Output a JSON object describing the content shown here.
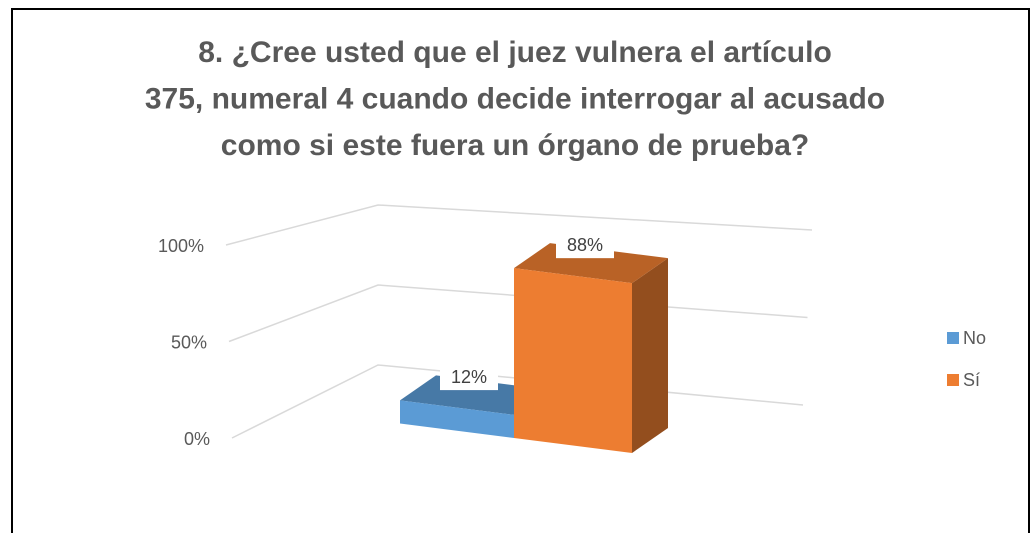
{
  "chart_data": {
    "type": "bar3d",
    "title": "8. ¿Cree usted que el juez vulnera el artículo 375, numeral 4 cuando decide interrogar al acusado como si este fuera un órgano de prueba?",
    "categories": [
      null
    ],
    "series": [
      {
        "name": "No",
        "color": "#5b9bd5",
        "values": [
          12
        ],
        "value_labels": [
          "12%"
        ]
      },
      {
        "name": "Sí",
        "color": "#ed7d31",
        "values": [
          88
        ],
        "value_labels": [
          "88%"
        ]
      }
    ],
    "ylim": [
      0,
      100
    ],
    "yticks": [
      {
        "value": 0,
        "label": "0%"
      },
      {
        "value": 50,
        "label": "50%"
      },
      {
        "value": 100,
        "label": "100%"
      }
    ],
    "grid": true,
    "legend": "right"
  }
}
